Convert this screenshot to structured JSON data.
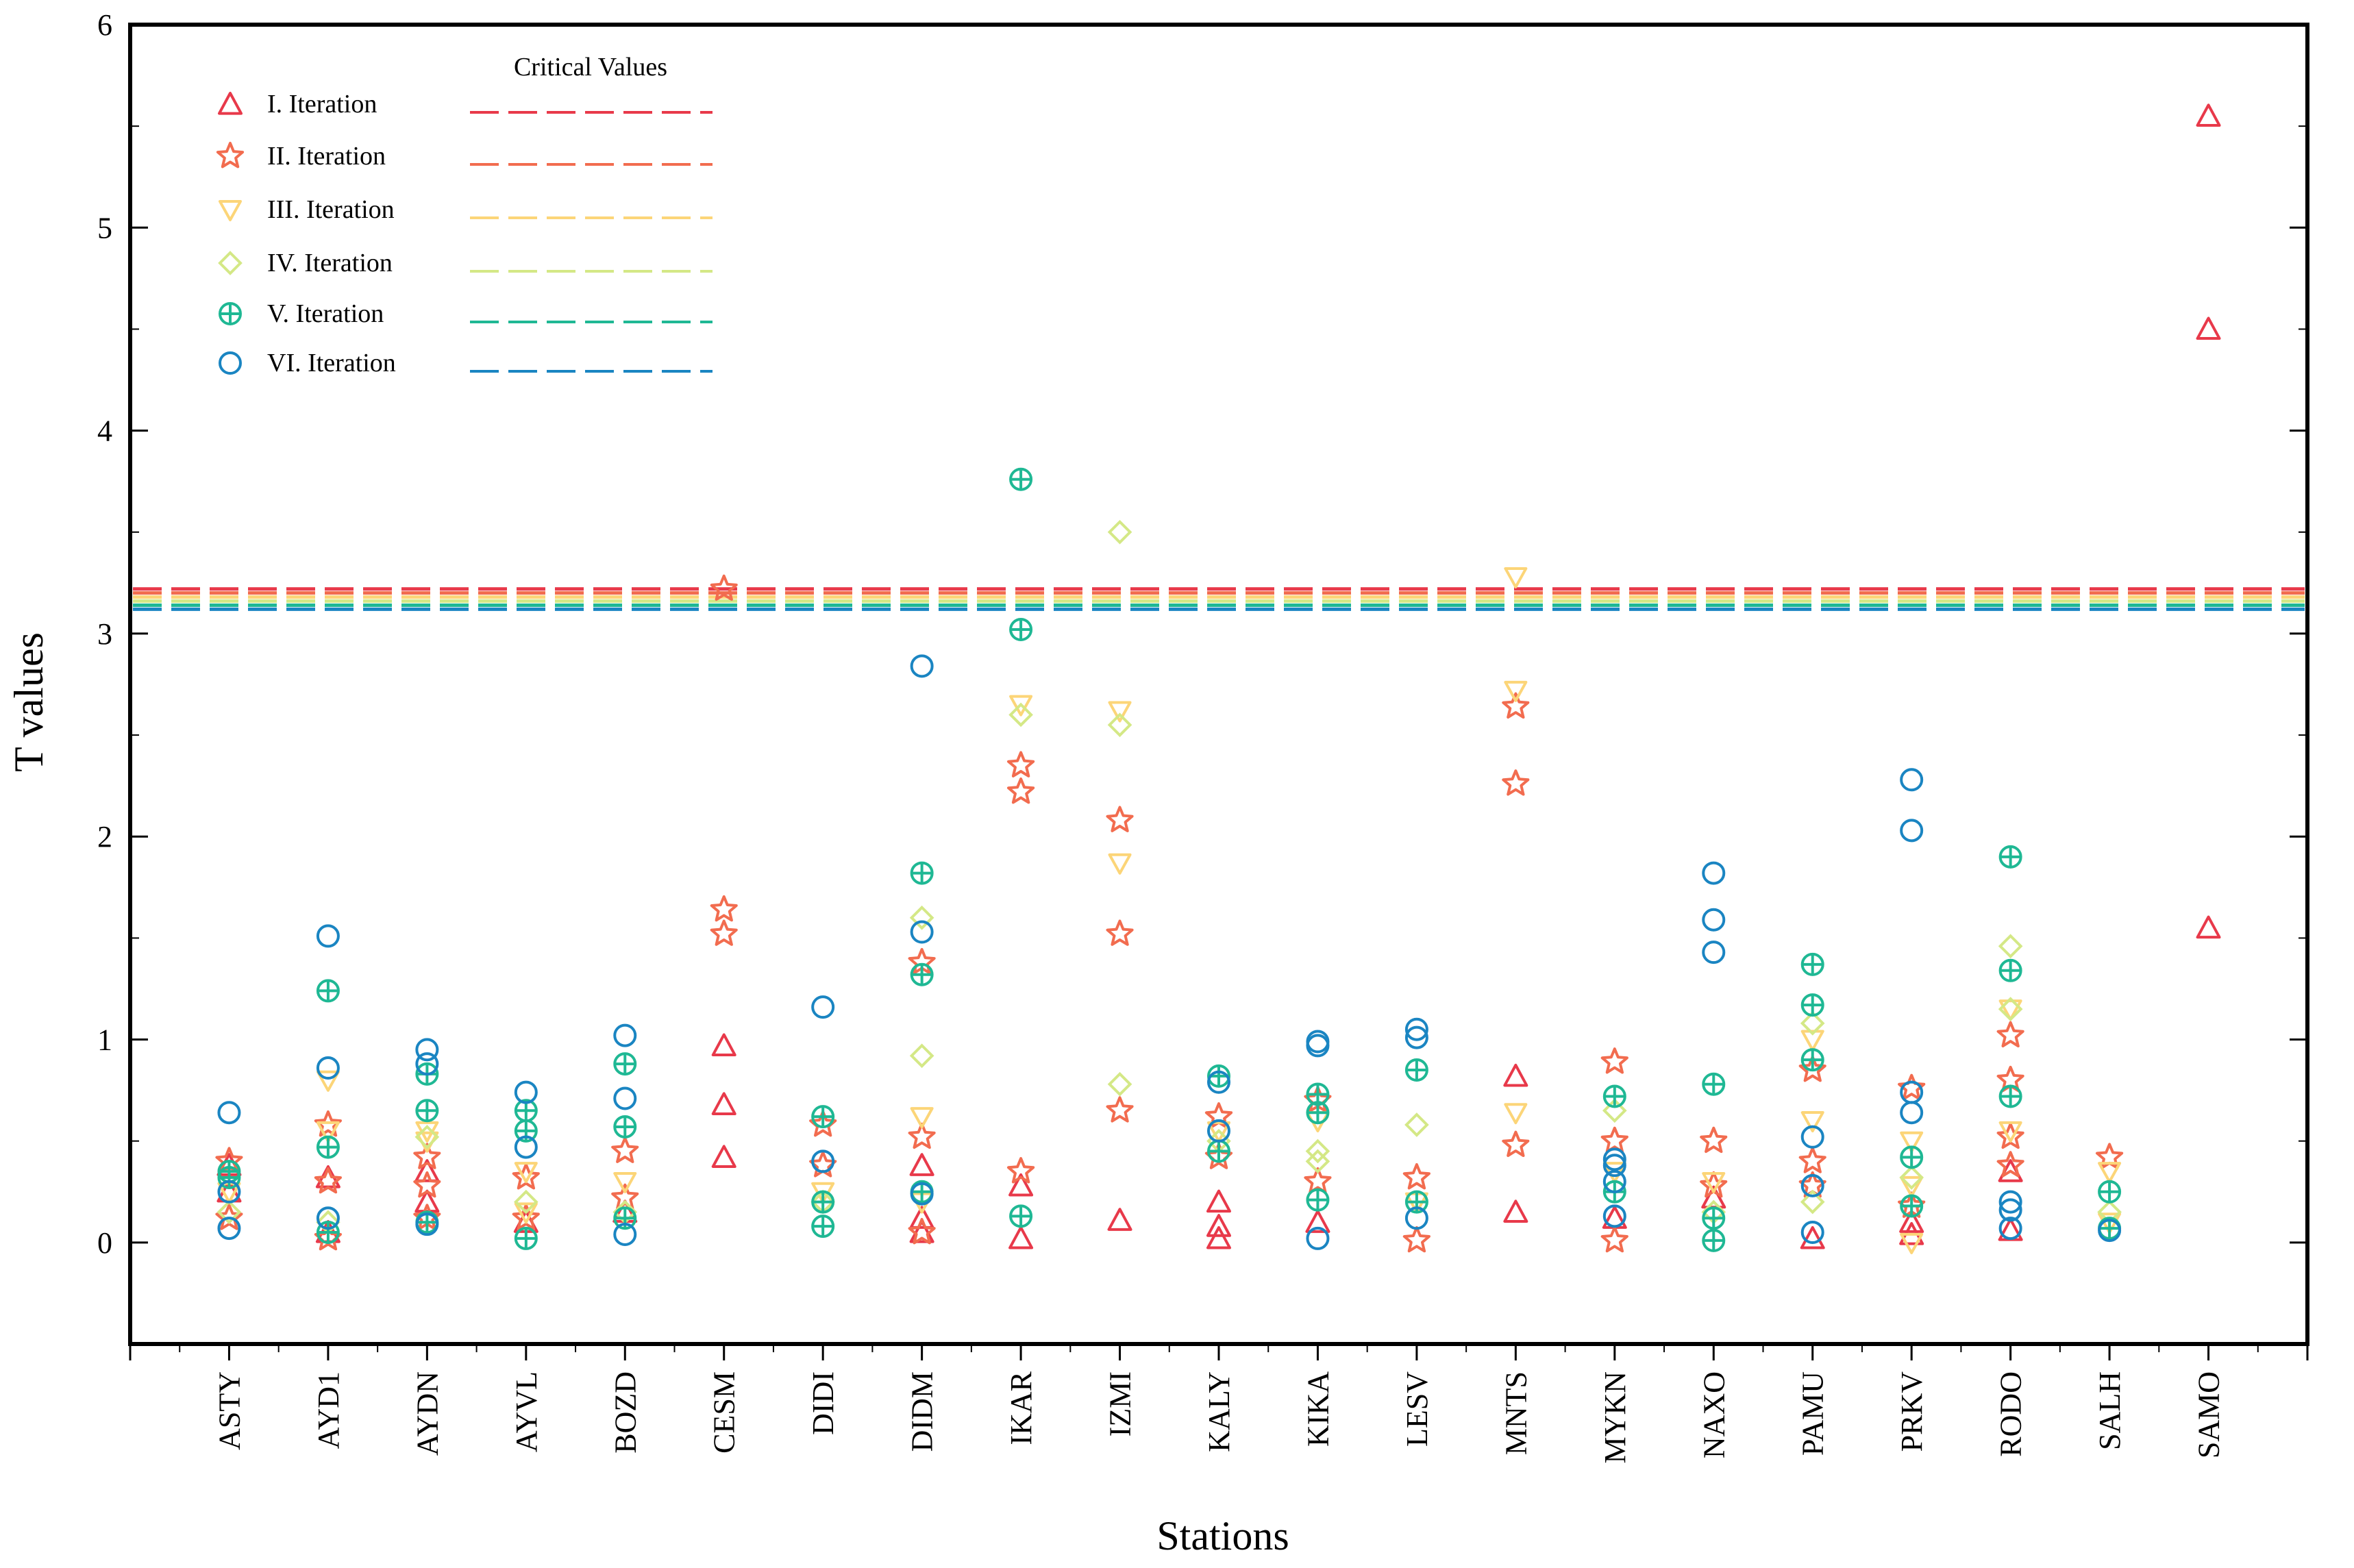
{
  "chart_data": {
    "type": "scatter",
    "xlabel": "Stations",
    "ylabel": "T values",
    "ylim": [
      -0.5,
      6
    ],
    "yticks": [
      0,
      1,
      2,
      3,
      4,
      5,
      6
    ],
    "grid": false,
    "legend_title": "Critical Values",
    "legend_position": "top-left",
    "categories": [
      "ASTY",
      "AYD1",
      "AYDN",
      "AYVL",
      "BOZD",
      "CESM",
      "DIDI",
      "DIDM",
      "IKAR",
      "IZMI",
      "KALY",
      "KIKA",
      "LESV",
      "MNTS",
      "MYKN",
      "NAXO",
      "PAMU",
      "PRKV",
      "RODO",
      "SALH",
      "SAMO"
    ],
    "series": [
      {
        "name": "I. Iteration",
        "marker": "triangle-up",
        "color": "#e8394a",
        "critical_value": 3.22,
        "points": [
          [
            "ASTY",
            0.38
          ],
          [
            "ASTY",
            0.25
          ],
          [
            "AYD1",
            0.32
          ],
          [
            "AYD1",
            0.05
          ],
          [
            "AYDN",
            0.35
          ],
          [
            "AYDN",
            0.2
          ],
          [
            "AYVL",
            0.1
          ],
          [
            "BOZD",
            0.15
          ],
          [
            "CESM",
            0.97
          ],
          [
            "CESM",
            0.68
          ],
          [
            "CESM",
            0.42
          ],
          [
            "DIDM",
            0.38
          ],
          [
            "DIDM",
            0.12
          ],
          [
            "DIDM",
            0.05
          ],
          [
            "IKAR",
            0.02
          ],
          [
            "IKAR",
            0.28
          ],
          [
            "IZMI",
            0.11
          ],
          [
            "KALY",
            0.2
          ],
          [
            "KALY",
            0.08
          ],
          [
            "KALY",
            0.02
          ],
          [
            "KIKA",
            0.1
          ],
          [
            "MNTS",
            0.82
          ],
          [
            "MNTS",
            0.15
          ],
          [
            "MYKN",
            0.12
          ],
          [
            "NAXO",
            0.22
          ],
          [
            "PAMU",
            0.02
          ],
          [
            "PRKV",
            0.1
          ],
          [
            "PRKV",
            0.04
          ],
          [
            "RODO",
            0.06
          ],
          [
            "RODO",
            0.35
          ],
          [
            "SAMO",
            5.55
          ],
          [
            "SAMO",
            4.5
          ],
          [
            "SAMO",
            1.55
          ]
        ]
      },
      {
        "name": "II. Iteration",
        "marker": "star",
        "color": "#f26c4f",
        "critical_value": 3.2,
        "points": [
          [
            "ASTY",
            0.4
          ],
          [
            "ASTY",
            0.12
          ],
          [
            "AYD1",
            0.58
          ],
          [
            "AYD1",
            0.3
          ],
          [
            "AYD1",
            0.02
          ],
          [
            "AYDN",
            0.42
          ],
          [
            "AYDN",
            0.28
          ],
          [
            "AYDN",
            0.12
          ],
          [
            "AYVL",
            0.32
          ],
          [
            "AYVL",
            0.12
          ],
          [
            "BOZD",
            0.45
          ],
          [
            "BOZD",
            0.22
          ],
          [
            "CESM",
            3.22
          ],
          [
            "CESM",
            1.64
          ],
          [
            "CESM",
            1.52
          ],
          [
            "DIDI",
            0.58
          ],
          [
            "DIDI",
            0.38
          ],
          [
            "DIDM",
            1.38
          ],
          [
            "DIDM",
            0.52
          ],
          [
            "DIDM",
            0.05
          ],
          [
            "IKAR",
            2.35
          ],
          [
            "IKAR",
            2.22
          ],
          [
            "IKAR",
            0.35
          ],
          [
            "IZMI",
            2.08
          ],
          [
            "IZMI",
            1.52
          ],
          [
            "IZMI",
            0.65
          ],
          [
            "KALY",
            0.62
          ],
          [
            "KALY",
            0.42
          ],
          [
            "KIKA",
            0.7
          ],
          [
            "KIKA",
            0.3
          ],
          [
            "LESV",
            0.32
          ],
          [
            "LESV",
            0.01
          ],
          [
            "MNTS",
            2.64
          ],
          [
            "MNTS",
            2.26
          ],
          [
            "MNTS",
            0.48
          ],
          [
            "MYKN",
            0.89
          ],
          [
            "MYKN",
            0.5
          ],
          [
            "MYKN",
            0.01
          ],
          [
            "NAXO",
            0.5
          ],
          [
            "NAXO",
            0.28
          ],
          [
            "PAMU",
            0.85
          ],
          [
            "PAMU",
            0.4
          ],
          [
            "PAMU",
            0.28
          ],
          [
            "PRKV",
            0.76
          ],
          [
            "PRKV",
            0.18
          ],
          [
            "RODO",
            1.02
          ],
          [
            "RODO",
            0.8
          ],
          [
            "RODO",
            0.52
          ],
          [
            "RODO",
            0.38
          ],
          [
            "SALH",
            0.42
          ]
        ]
      },
      {
        "name": "III. Iteration",
        "marker": "triangle-down",
        "color": "#fcd578",
        "critical_value": 3.18,
        "points": [
          [
            "ASTY",
            0.25
          ],
          [
            "AYD1",
            0.8
          ],
          [
            "AYD1",
            0.55
          ],
          [
            "AYDN",
            0.55
          ],
          [
            "AYDN",
            0.5
          ],
          [
            "AYVL",
            0.35
          ],
          [
            "AYVL",
            0.15
          ],
          [
            "BOZD",
            0.3
          ],
          [
            "DIDI",
            0.25
          ],
          [
            "DIDM",
            0.62
          ],
          [
            "DIDM",
            0.2
          ],
          [
            "IKAR",
            2.65
          ],
          [
            "IZMI",
            2.62
          ],
          [
            "IZMI",
            1.87
          ],
          [
            "KALY",
            0.55
          ],
          [
            "KIKA",
            0.6
          ],
          [
            "LESV",
            0.2
          ],
          [
            "MNTS",
            3.28
          ],
          [
            "MNTS",
            2.72
          ],
          [
            "MNTS",
            0.64
          ],
          [
            "MYKN",
            0.35
          ],
          [
            "NAXO",
            0.3
          ],
          [
            "PAMU",
            1.0
          ],
          [
            "PAMU",
            0.6
          ],
          [
            "PRKV",
            0.5
          ],
          [
            "PRKV",
            0.28
          ],
          [
            "PRKV",
            0.0
          ],
          [
            "RODO",
            1.15
          ],
          [
            "RODO",
            0.55
          ],
          [
            "SALH",
            0.35
          ],
          [
            "SALH",
            0.1
          ]
        ]
      },
      {
        "name": "IV. Iteration",
        "marker": "diamond",
        "color": "#d4e886",
        "critical_value": 3.16,
        "points": [
          [
            "ASTY",
            0.15
          ],
          [
            "AYD1",
            0.1
          ],
          [
            "AYDN",
            0.52
          ],
          [
            "AYVL",
            0.2
          ],
          [
            "BOZD",
            0.15
          ],
          [
            "DIDI",
            0.2
          ],
          [
            "DIDM",
            1.6
          ],
          [
            "DIDM",
            0.92
          ],
          [
            "IKAR",
            2.6
          ],
          [
            "IZMI",
            3.5
          ],
          [
            "IZMI",
            2.55
          ],
          [
            "IZMI",
            0.78
          ],
          [
            "KALY",
            0.5
          ],
          [
            "KIKA",
            0.45
          ],
          [
            "KIKA",
            0.4
          ],
          [
            "LESV",
            0.58
          ],
          [
            "MYKN",
            0.65
          ],
          [
            "NAXO",
            0.15
          ],
          [
            "PAMU",
            1.08
          ],
          [
            "PAMU",
            0.2
          ],
          [
            "PRKV",
            0.32
          ],
          [
            "RODO",
            1.46
          ],
          [
            "RODO",
            1.15
          ],
          [
            "SALH",
            0.15
          ]
        ]
      },
      {
        "name": "V. Iteration",
        "marker": "circle-plus",
        "color": "#1fb894",
        "critical_value": 3.14,
        "points": [
          [
            "ASTY",
            0.35
          ],
          [
            "ASTY",
            0.32
          ],
          [
            "AYD1",
            1.24
          ],
          [
            "AYD1",
            0.47
          ],
          [
            "AYD1",
            0.05
          ],
          [
            "AYDN",
            0.83
          ],
          [
            "AYDN",
            0.65
          ],
          [
            "AYDN",
            0.1
          ],
          [
            "AYVL",
            0.65
          ],
          [
            "AYVL",
            0.55
          ],
          [
            "AYVL",
            0.02
          ],
          [
            "BOZD",
            0.88
          ],
          [
            "BOZD",
            0.57
          ],
          [
            "BOZD",
            0.12
          ],
          [
            "DIDI",
            0.62
          ],
          [
            "DIDI",
            0.2
          ],
          [
            "DIDI",
            0.08
          ],
          [
            "DIDM",
            1.82
          ],
          [
            "DIDM",
            1.32
          ],
          [
            "DIDM",
            0.25
          ],
          [
            "IKAR",
            3.76
          ],
          [
            "IKAR",
            3.02
          ],
          [
            "IKAR",
            0.13
          ],
          [
            "KALY",
            0.82
          ],
          [
            "KALY",
            0.45
          ],
          [
            "KIKA",
            0.73
          ],
          [
            "KIKA",
            0.64
          ],
          [
            "KIKA",
            0.21
          ],
          [
            "LESV",
            0.85
          ],
          [
            "LESV",
            0.2
          ],
          [
            "MYKN",
            0.72
          ],
          [
            "MYKN",
            0.25
          ],
          [
            "NAXO",
            0.78
          ],
          [
            "NAXO",
            0.12
          ],
          [
            "NAXO",
            0.01
          ],
          [
            "PAMU",
            1.37
          ],
          [
            "PAMU",
            1.17
          ],
          [
            "PAMU",
            0.9
          ],
          [
            "PRKV",
            0.42
          ],
          [
            "PRKV",
            0.18
          ],
          [
            "RODO",
            1.9
          ],
          [
            "RODO",
            1.34
          ],
          [
            "RODO",
            0.72
          ],
          [
            "SALH",
            0.25
          ],
          [
            "SALH",
            0.07
          ]
        ]
      },
      {
        "name": "VI. Iteration",
        "marker": "circle",
        "color": "#1a85c2",
        "critical_value": 3.12,
        "points": [
          [
            "ASTY",
            0.64
          ],
          [
            "ASTY",
            0.25
          ],
          [
            "ASTY",
            0.07
          ],
          [
            "AYD1",
            1.51
          ],
          [
            "AYD1",
            0.86
          ],
          [
            "AYD1",
            0.12
          ],
          [
            "AYDN",
            0.95
          ],
          [
            "AYDN",
            0.88
          ],
          [
            "AYDN",
            0.09
          ],
          [
            "AYVL",
            0.74
          ],
          [
            "AYVL",
            0.47
          ],
          [
            "BOZD",
            1.02
          ],
          [
            "BOZD",
            0.71
          ],
          [
            "BOZD",
            0.04
          ],
          [
            "DIDI",
            1.16
          ],
          [
            "DIDI",
            0.4
          ],
          [
            "DIDM",
            2.84
          ],
          [
            "DIDM",
            1.53
          ],
          [
            "DIDM",
            0.24
          ],
          [
            "KALY",
            0.79
          ],
          [
            "KALY",
            0.55
          ],
          [
            "KIKA",
            0.99
          ],
          [
            "KIKA",
            0.97
          ],
          [
            "KIKA",
            0.02
          ],
          [
            "LESV",
            1.05
          ],
          [
            "LESV",
            1.01
          ],
          [
            "LESV",
            0.12
          ],
          [
            "MYKN",
            0.41
          ],
          [
            "MYKN",
            0.38
          ],
          [
            "MYKN",
            0.3
          ],
          [
            "MYKN",
            0.13
          ],
          [
            "NAXO",
            1.82
          ],
          [
            "NAXO",
            1.59
          ],
          [
            "NAXO",
            1.43
          ],
          [
            "PAMU",
            0.52
          ],
          [
            "PAMU",
            0.28
          ],
          [
            "PAMU",
            0.05
          ],
          [
            "PRKV",
            2.28
          ],
          [
            "PRKV",
            2.03
          ],
          [
            "PRKV",
            0.74
          ],
          [
            "PRKV",
            0.64
          ],
          [
            "RODO",
            0.2
          ],
          [
            "RODO",
            0.16
          ],
          [
            "RODO",
            0.07
          ],
          [
            "SALH",
            0.06
          ]
        ]
      }
    ]
  }
}
